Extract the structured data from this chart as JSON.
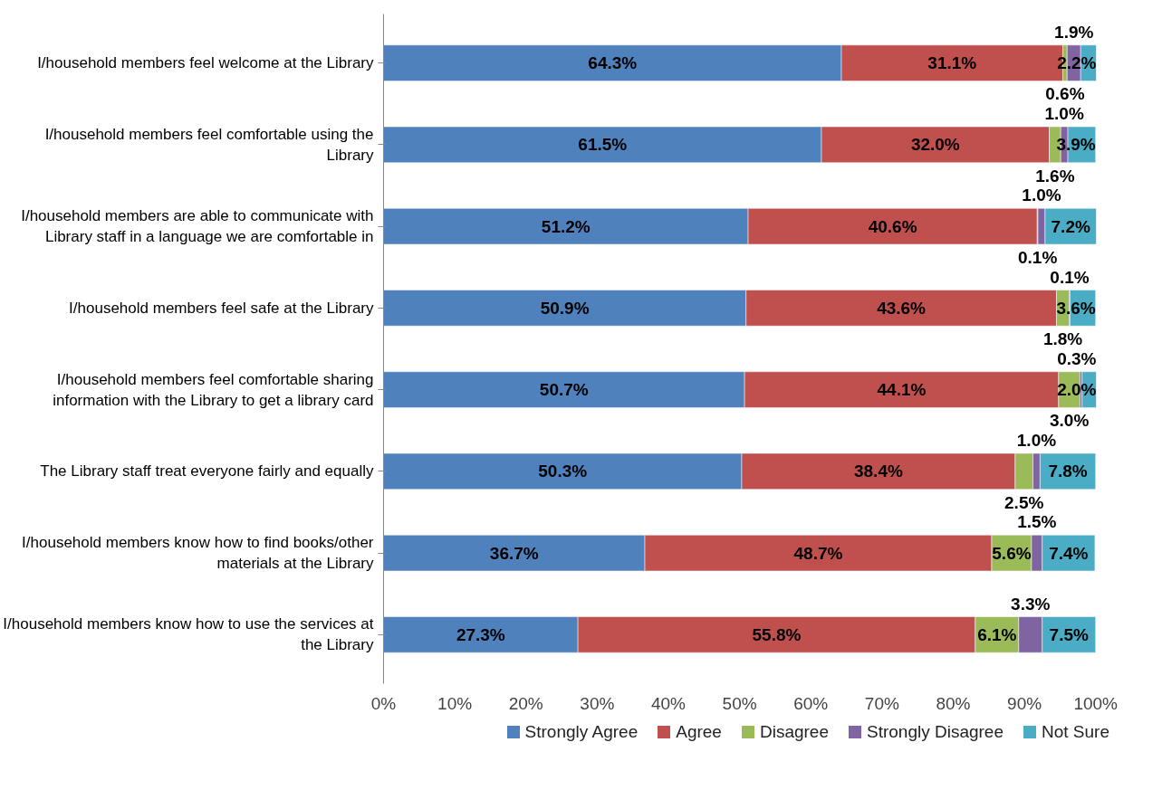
{
  "chart_data": {
    "type": "bar",
    "orientation": "horizontal",
    "stacked": true,
    "categories": [
      "I/household members feel welcome at the Library",
      "I/household members feel comfortable using the Library",
      "I/household members are able to communicate with Library staff in a language we are comfortable in",
      "I/household members feel safe at the Library",
      "I/household members feel comfortable sharing information with the Library to get a library card",
      "The Library staff treat everyone fairly and equally",
      "I/household members know how to find books/other materials at the Library",
      "I/household members know how to use the services at the Library"
    ],
    "series": [
      {
        "name": "Strongly Agree",
        "color": "#4f81bd",
        "values": [
          64.3,
          61.5,
          51.2,
          50.9,
          50.7,
          50.3,
          36.7,
          27.3
        ],
        "value_labels": [
          "64.3%",
          "61.5%",
          "51.2%",
          "50.9%",
          "50.7%",
          "50.3%",
          "36.7%",
          "27.3%"
        ]
      },
      {
        "name": "Agree",
        "color": "#c0504d",
        "values": [
          31.1,
          32.0,
          40.6,
          43.6,
          44.1,
          38.4,
          48.7,
          55.8
        ],
        "value_labels": [
          "31.1%",
          "32.0%",
          "40.6%",
          "43.6%",
          "44.1%",
          "38.4%",
          "48.7%",
          "55.8%"
        ]
      },
      {
        "name": "Disagree",
        "color": "#9bbb59",
        "values": [
          0.6,
          1.6,
          0.1,
          1.8,
          3.0,
          2.5,
          5.6,
          6.1
        ],
        "value_labels": [
          "0.6%",
          "1.6%",
          "0.1%",
          "1.8%",
          "3.0%",
          "2.5%",
          "5.6%",
          "6.1%"
        ]
      },
      {
        "name": "Strongly Disagree",
        "color": "#8064a2",
        "values": [
          1.9,
          1.0,
          1.0,
          0.1,
          0.3,
          1.0,
          1.5,
          3.3
        ],
        "value_labels": [
          "1.9%",
          "1.0%",
          "1.0%",
          "0.1%",
          "0.3%",
          "1.0%",
          "1.5%",
          "3.3%"
        ]
      },
      {
        "name": "Not Sure",
        "color": "#4bacc6",
        "values": [
          2.2,
          3.9,
          7.2,
          3.6,
          2.0,
          7.8,
          7.4,
          7.5
        ],
        "value_labels": [
          "2.2%",
          "3.9%",
          "7.2%",
          "3.6%",
          "2.0%",
          "7.8%",
          "7.4%",
          "7.5%"
        ]
      }
    ],
    "xlim": [
      0,
      100.1
    ],
    "xticks": [
      {
        "value": 0,
        "label": "0%"
      },
      {
        "value": 10,
        "label": "10%"
      },
      {
        "value": 20,
        "label": "20%"
      },
      {
        "value": 30,
        "label": "30%"
      },
      {
        "value": 40,
        "label": "40%"
      },
      {
        "value": 50,
        "label": "50%"
      },
      {
        "value": 60,
        "label": "60%"
      },
      {
        "value": 70,
        "label": "70%"
      },
      {
        "value": 80,
        "label": "80%"
      },
      {
        "value": 90,
        "label": "90%"
      },
      {
        "value": 100,
        "label": "100%"
      }
    ],
    "grid": false,
    "legend": "bottom"
  }
}
